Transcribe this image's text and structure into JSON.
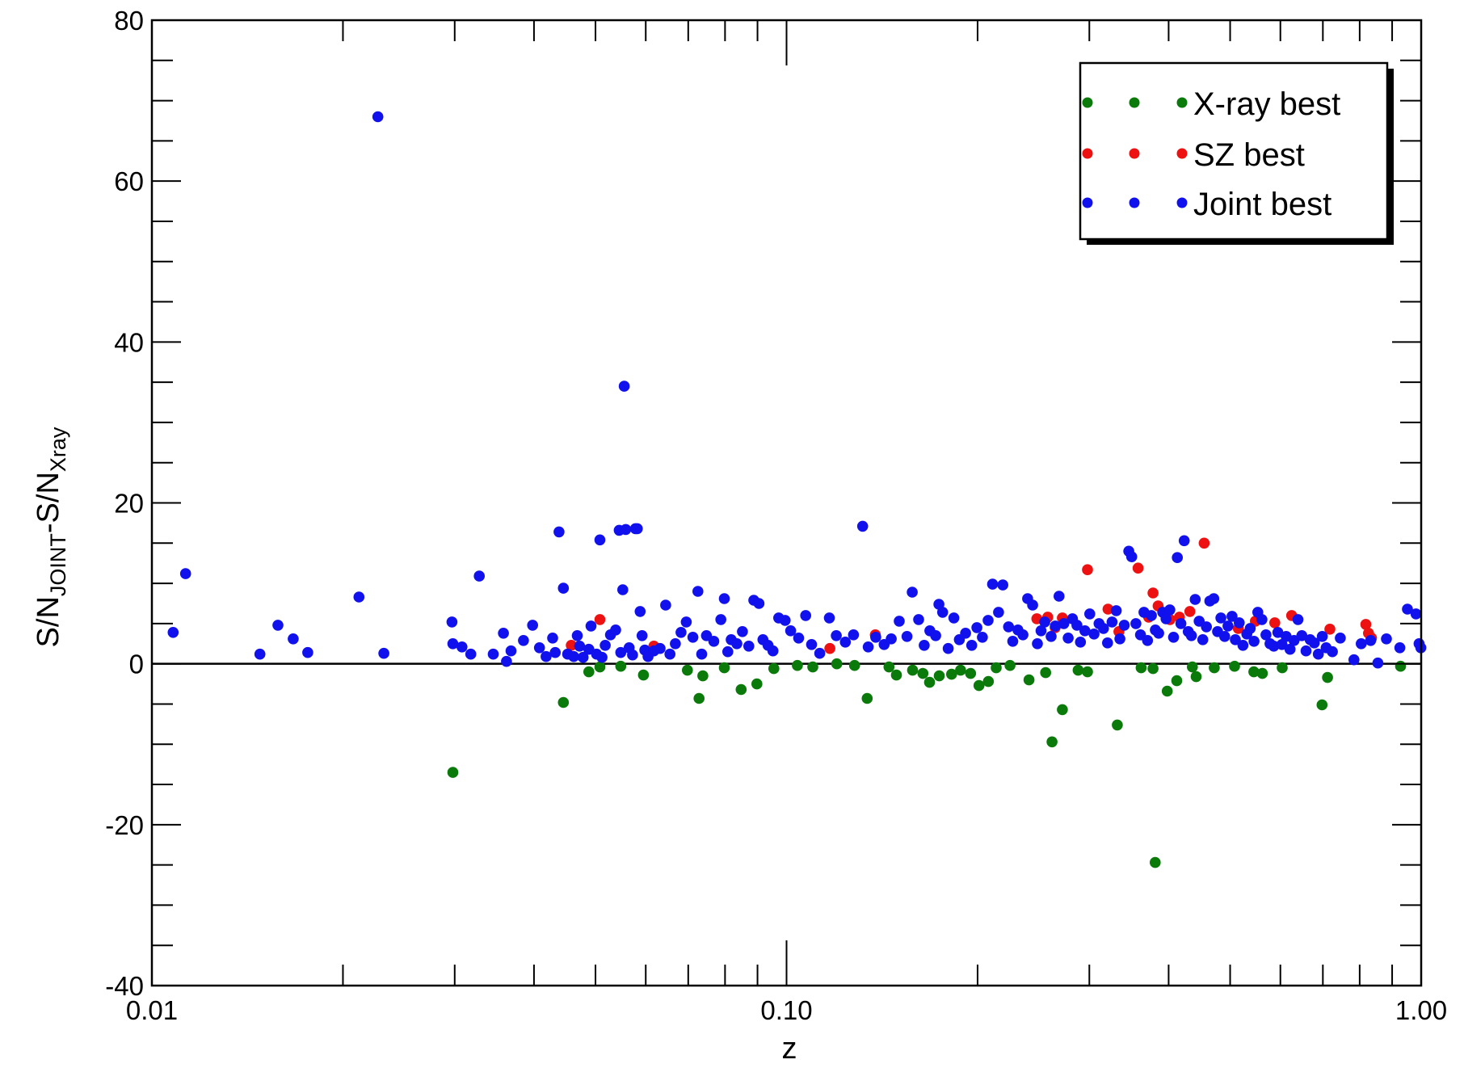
{
  "chart_data": {
    "type": "scatter",
    "x_scale": "log",
    "xlabel": "z",
    "ylabel": {
      "main": "S/N",
      "sub1": "JOINT",
      "mid": "-S/N",
      "sub2": "Xray"
    },
    "xlim": [
      0.01,
      1.0
    ],
    "ylim": [
      -40,
      80
    ],
    "x_ticks": [
      0.01,
      0.1,
      1.0
    ],
    "x_tick_labels": [
      "0.01",
      "0.10",
      "1.00"
    ],
    "y_ticks": [
      -40,
      -20,
      0,
      20,
      40,
      60,
      80
    ],
    "y_tick_labels": [
      "-40",
      "-20",
      "0",
      "20",
      "40",
      "60",
      "80"
    ],
    "grid": false,
    "zero_line": true,
    "legend_position": "top-right",
    "series": [
      {
        "name": "X-ray best",
        "color": "#0a7a0a",
        "points": [
          [
            0.0298,
            -13.5
          ],
          [
            0.0445,
            -4.8
          ],
          [
            0.0488,
            -1.0
          ],
          [
            0.0508,
            -0.4
          ],
          [
            0.0548,
            -0.3
          ],
          [
            0.0595,
            -1.4
          ],
          [
            0.0698,
            -0.8
          ],
          [
            0.0728,
            -4.3
          ],
          [
            0.0738,
            -1.5
          ],
          [
            0.0798,
            -0.5
          ],
          [
            0.0848,
            -3.2
          ],
          [
            0.0898,
            -2.5
          ],
          [
            0.0955,
            -0.6
          ],
          [
            0.104,
            -0.2
          ],
          [
            0.11,
            -0.4
          ],
          [
            0.12,
            0.0
          ],
          [
            0.128,
            -0.2
          ],
          [
            0.134,
            -4.3
          ],
          [
            0.145,
            -0.4
          ],
          [
            0.149,
            -1.4
          ],
          [
            0.158,
            -0.8
          ],
          [
            0.164,
            -1.2
          ],
          [
            0.168,
            -2.3
          ],
          [
            0.174,
            -1.5
          ],
          [
            0.182,
            -1.3
          ],
          [
            0.188,
            -0.8
          ],
          [
            0.195,
            -1.2
          ],
          [
            0.201,
            -2.7
          ],
          [
            0.208,
            -2.2
          ],
          [
            0.214,
            -0.5
          ],
          [
            0.225,
            -0.2
          ],
          [
            0.241,
            -2.0
          ],
          [
            0.256,
            -1.1
          ],
          [
            0.262,
            -9.7
          ],
          [
            0.272,
            -5.7
          ],
          [
            0.288,
            -0.8
          ],
          [
            0.298,
            -1.0
          ],
          [
            0.332,
            -7.6
          ],
          [
            0.362,
            -0.5
          ],
          [
            0.378,
            -0.6
          ],
          [
            0.381,
            -24.7
          ],
          [
            0.398,
            -3.4
          ],
          [
            0.412,
            -2.1
          ],
          [
            0.436,
            -0.4
          ],
          [
            0.442,
            -1.6
          ],
          [
            0.472,
            -0.5
          ],
          [
            0.508,
            -0.3
          ],
          [
            0.545,
            -1.0
          ],
          [
            0.562,
            -1.2
          ],
          [
            0.604,
            -0.5
          ],
          [
            0.698,
            -5.1
          ],
          [
            0.712,
            -1.7
          ],
          [
            0.928,
            -0.3
          ]
        ]
      },
      {
        "name": "SZ best",
        "color": "#ee1111",
        "points": [
          [
            0.0458,
            2.3
          ],
          [
            0.0508,
            5.5
          ],
          [
            0.0618,
            2.2
          ],
          [
            0.117,
            1.9
          ],
          [
            0.138,
            3.6
          ],
          [
            0.248,
            5.6
          ],
          [
            0.258,
            5.8
          ],
          [
            0.265,
            4.5
          ],
          [
            0.272,
            5.7
          ],
          [
            0.298,
            11.7
          ],
          [
            0.321,
            6.8
          ],
          [
            0.334,
            4.0
          ],
          [
            0.358,
            11.9
          ],
          [
            0.372,
            5.8
          ],
          [
            0.378,
            8.8
          ],
          [
            0.385,
            7.2
          ],
          [
            0.402,
            5.5
          ],
          [
            0.416,
            5.8
          ],
          [
            0.432,
            6.5
          ],
          [
            0.455,
            15.0
          ],
          [
            0.515,
            4.4
          ],
          [
            0.548,
            5.3
          ],
          [
            0.588,
            5.1
          ],
          [
            0.625,
            6.0
          ],
          [
            0.718,
            4.3
          ],
          [
            0.818,
            4.9
          ],
          [
            0.826,
            3.8
          ],
          [
            0.835,
            3.2
          ]
        ]
      },
      {
        "name": "Joint best",
        "color": "#1111ee",
        "points": [
          [
            0.0108,
            3.9
          ],
          [
            0.0113,
            11.2
          ],
          [
            0.0148,
            1.2
          ],
          [
            0.0158,
            4.8
          ],
          [
            0.0167,
            3.1
          ],
          [
            0.0176,
            1.4
          ],
          [
            0.0212,
            8.3
          ],
          [
            0.0227,
            68.0
          ],
          [
            0.0232,
            1.3
          ],
          [
            0.0297,
            5.2
          ],
          [
            0.0298,
            2.5
          ],
          [
            0.0308,
            2.1
          ],
          [
            0.0318,
            1.2
          ],
          [
            0.0328,
            10.9
          ],
          [
            0.0345,
            1.2
          ],
          [
            0.0358,
            3.8
          ],
          [
            0.0362,
            0.3
          ],
          [
            0.0368,
            1.6
          ],
          [
            0.0385,
            2.9
          ],
          [
            0.0398,
            4.8
          ],
          [
            0.0408,
            2.0
          ],
          [
            0.0418,
            0.9
          ],
          [
            0.0428,
            3.2
          ],
          [
            0.0432,
            1.4
          ],
          [
            0.0438,
            16.4
          ],
          [
            0.0445,
            9.4
          ],
          [
            0.0452,
            1.2
          ],
          [
            0.0462,
            0.9
          ],
          [
            0.0468,
            3.5
          ],
          [
            0.0472,
            2.2
          ],
          [
            0.0478,
            0.8
          ],
          [
            0.0488,
            1.8
          ],
          [
            0.0492,
            4.7
          ],
          [
            0.0502,
            1.2
          ],
          [
            0.0508,
            15.4
          ],
          [
            0.0512,
            0.8
          ],
          [
            0.0518,
            2.3
          ],
          [
            0.0528,
            3.6
          ],
          [
            0.0538,
            4.2
          ],
          [
            0.0545,
            16.6
          ],
          [
            0.0548,
            1.4
          ],
          [
            0.0552,
            9.2
          ],
          [
            0.0555,
            34.5
          ],
          [
            0.0558,
            16.7
          ],
          [
            0.0565,
            2.0
          ],
          [
            0.0572,
            1.1
          ],
          [
            0.0578,
            16.8
          ],
          [
            0.0582,
            16.8
          ],
          [
            0.0588,
            6.5
          ],
          [
            0.0592,
            3.5
          ],
          [
            0.0598,
            1.7
          ],
          [
            0.0605,
            0.9
          ],
          [
            0.0618,
            1.6
          ],
          [
            0.0632,
            1.9
          ],
          [
            0.0645,
            7.3
          ],
          [
            0.0655,
            1.2
          ],
          [
            0.0668,
            2.5
          ],
          [
            0.0682,
            3.9
          ],
          [
            0.0695,
            5.2
          ],
          [
            0.0712,
            3.3
          ],
          [
            0.0725,
            9.0
          ],
          [
            0.0735,
            1.2
          ],
          [
            0.0748,
            3.5
          ],
          [
            0.0768,
            2.8
          ],
          [
            0.0788,
            5.5
          ],
          [
            0.0798,
            8.1
          ],
          [
            0.0808,
            1.5
          ],
          [
            0.0818,
            3.0
          ],
          [
            0.0835,
            2.5
          ],
          [
            0.0852,
            4.0
          ],
          [
            0.0872,
            2.2
          ],
          [
            0.0888,
            7.9
          ],
          [
            0.0905,
            7.5
          ],
          [
            0.0918,
            3.0
          ],
          [
            0.0935,
            2.3
          ],
          [
            0.0952,
            1.6
          ],
          [
            0.0972,
            5.7
          ],
          [
            0.0995,
            5.4
          ],
          [
            0.1015,
            4.1
          ],
          [
            0.1045,
            3.2
          ],
          [
            0.1072,
            6.0
          ],
          [
            0.1095,
            2.4
          ],
          [
            0.1128,
            1.3
          ],
          [
            0.1168,
            5.7
          ],
          [
            0.1198,
            3.5
          ],
          [
            0.1238,
            2.7
          ],
          [
            0.1275,
            3.6
          ],
          [
            0.1318,
            17.1
          ],
          [
            0.1345,
            2.1
          ],
          [
            0.1382,
            3.3
          ],
          [
            0.1425,
            2.4
          ],
          [
            0.1462,
            3.1
          ],
          [
            0.1505,
            5.3
          ],
          [
            0.1548,
            3.4
          ],
          [
            0.1578,
            8.9
          ],
          [
            0.1615,
            5.5
          ],
          [
            0.1648,
            2.3
          ],
          [
            0.1682,
            4.1
          ],
          [
            0.1718,
            3.5
          ],
          [
            0.1738,
            7.4
          ],
          [
            0.1762,
            6.4
          ],
          [
            0.1798,
            1.9
          ],
          [
            0.1835,
            5.7
          ],
          [
            0.1872,
            3.0
          ],
          [
            0.1915,
            3.8
          ],
          [
            0.1958,
            2.3
          ],
          [
            0.1995,
            4.5
          ],
          [
            0.2035,
            3.3
          ],
          [
            0.2078,
            5.4
          ],
          [
            0.2112,
            9.9
          ],
          [
            0.2158,
            6.4
          ],
          [
            0.2192,
            9.8
          ],
          [
            0.2238,
            4.6
          ],
          [
            0.2272,
            2.8
          ],
          [
            0.2315,
            4.2
          ],
          [
            0.2358,
            3.6
          ],
          [
            0.2398,
            8.1
          ],
          [
            0.2442,
            7.3
          ],
          [
            0.2485,
            2.5
          ],
          [
            0.2518,
            4.1
          ],
          [
            0.2552,
            5.2
          ],
          [
            0.2612,
            3.4
          ],
          [
            0.2652,
            4.7
          ],
          [
            0.2688,
            8.4
          ],
          [
            0.2735,
            5.0
          ],
          [
            0.2778,
            3.2
          ],
          [
            0.2822,
            5.6
          ],
          [
            0.2868,
            4.8
          ],
          [
            0.2905,
            2.7
          ],
          [
            0.2952,
            4.1
          ],
          [
            0.3005,
            6.2
          ],
          [
            0.3052,
            3.7
          ],
          [
            0.3108,
            5.0
          ],
          [
            0.3158,
            4.4
          ],
          [
            0.3205,
            2.6
          ],
          [
            0.3258,
            5.2
          ],
          [
            0.3308,
            6.6
          ],
          [
            0.3352,
            3.1
          ],
          [
            0.3405,
            4.8
          ],
          [
            0.3462,
            14.0
          ],
          [
            0.3498,
            13.3
          ],
          [
            0.3552,
            5.0
          ],
          [
            0.3612,
            3.6
          ],
          [
            0.3658,
            6.4
          ],
          [
            0.3705,
            2.9
          ],
          [
            0.3758,
            6.0
          ],
          [
            0.3812,
            4.2
          ],
          [
            0.3858,
            3.8
          ],
          [
            0.3915,
            6.4
          ],
          [
            0.3962,
            5.6
          ],
          [
            0.4018,
            6.7
          ],
          [
            0.4072,
            3.3
          ],
          [
            0.4128,
            13.2
          ],
          [
            0.4182,
            5.0
          ],
          [
            0.4232,
            15.3
          ],
          [
            0.4295,
            4.0
          ],
          [
            0.4345,
            3.5
          ],
          [
            0.4405,
            8.0
          ],
          [
            0.4468,
            5.3
          ],
          [
            0.4528,
            3.0
          ],
          [
            0.4588,
            4.6
          ],
          [
            0.4645,
            7.8
          ],
          [
            0.4712,
            8.1
          ],
          [
            0.4778,
            4.0
          ],
          [
            0.4835,
            5.7
          ],
          [
            0.4902,
            3.4
          ],
          [
            0.4962,
            4.7
          ],
          [
            0.5035,
            5.9
          ],
          [
            0.5095,
            3.0
          ],
          [
            0.5168,
            5.1
          ],
          [
            0.5238,
            2.3
          ],
          [
            0.5312,
            3.7
          ],
          [
            0.5378,
            4.4
          ],
          [
            0.5452,
            2.8
          ],
          [
            0.5528,
            6.4
          ],
          [
            0.5612,
            5.5
          ],
          [
            0.5695,
            3.6
          ],
          [
            0.5778,
            2.5
          ],
          [
            0.5858,
            2.2
          ],
          [
            0.5945,
            3.9
          ],
          [
            0.6035,
            2.4
          ],
          [
            0.6128,
            3.4
          ],
          [
            0.6215,
            1.8
          ],
          [
            0.6305,
            2.9
          ],
          [
            0.6395,
            5.5
          ],
          [
            0.6485,
            3.5
          ],
          [
            0.6585,
            1.6
          ],
          [
            0.6685,
            3.0
          ],
          [
            0.6785,
            2.6
          ],
          [
            0.6885,
            1.2
          ],
          [
            0.6985,
            3.4
          ],
          [
            0.7085,
            2.0
          ],
          [
            0.7245,
            1.5
          ],
          [
            0.7458,
            3.2
          ],
          [
            0.7835,
            0.5
          ],
          [
            0.8045,
            2.5
          ],
          [
            0.8325,
            2.9
          ],
          [
            0.8545,
            0.1
          ],
          [
            0.8815,
            3.1
          ],
          [
            0.9255,
            2.0
          ],
          [
            0.9515,
            6.8
          ],
          [
            0.9815,
            6.2
          ],
          [
            0.9925,
            2.5
          ],
          [
            0.9988,
            2.0
          ]
        ]
      }
    ]
  }
}
